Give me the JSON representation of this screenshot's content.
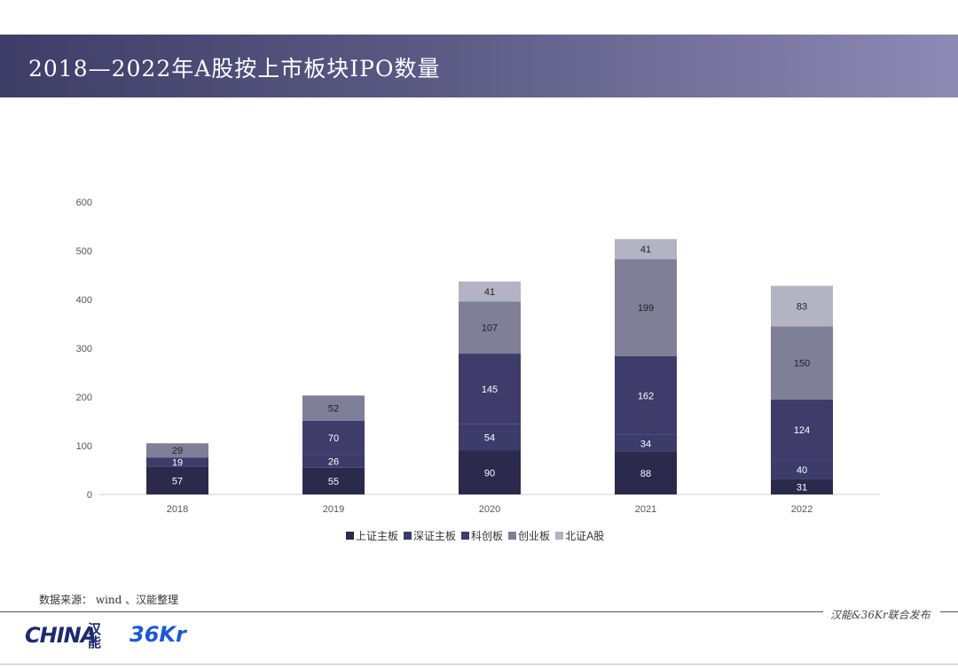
{
  "header": {
    "title": "2018—2022年A股按上市板块IPO数量"
  },
  "source": "数据来源： wind 、汉能整理",
  "footer": {
    "publisher": "汉能&36Kr联合发布",
    "logo_hina": "HINA",
    "logo_hina_mark": "汉能",
    "logo_36kr": "36Kr"
  },
  "colors": {
    "上证主板": "#2b2a4c",
    "深证主板": "#3d3b6a",
    "科创板": "#3f3c6c",
    "创业板": "#7f7f98",
    "北证A股": "#b3b3c4"
  },
  "chart_data": {
    "type": "bar",
    "stacked": true,
    "categories": [
      "2018",
      "2019",
      "2020",
      "2021",
      "2022"
    ],
    "series": [
      {
        "name": "上证主板",
        "values": [
          57,
          55,
          90,
          88,
          31
        ]
      },
      {
        "name": "深证主板",
        "values": [
          19,
          26,
          54,
          34,
          40
        ]
      },
      {
        "name": "科创板",
        "values": [
          null,
          70,
          145,
          162,
          124
        ]
      },
      {
        "name": "创业板",
        "values": [
          29,
          52,
          107,
          199,
          150
        ]
      },
      {
        "name": "北证A股",
        "values": [
          null,
          null,
          41,
          41,
          83
        ]
      }
    ],
    "title": "",
    "xlabel": "",
    "ylabel": "",
    "ylim": [
      0,
      600
    ],
    "yticks": [
      0,
      100,
      200,
      300,
      400,
      500,
      600
    ],
    "grid": false,
    "legend": "bottom"
  }
}
